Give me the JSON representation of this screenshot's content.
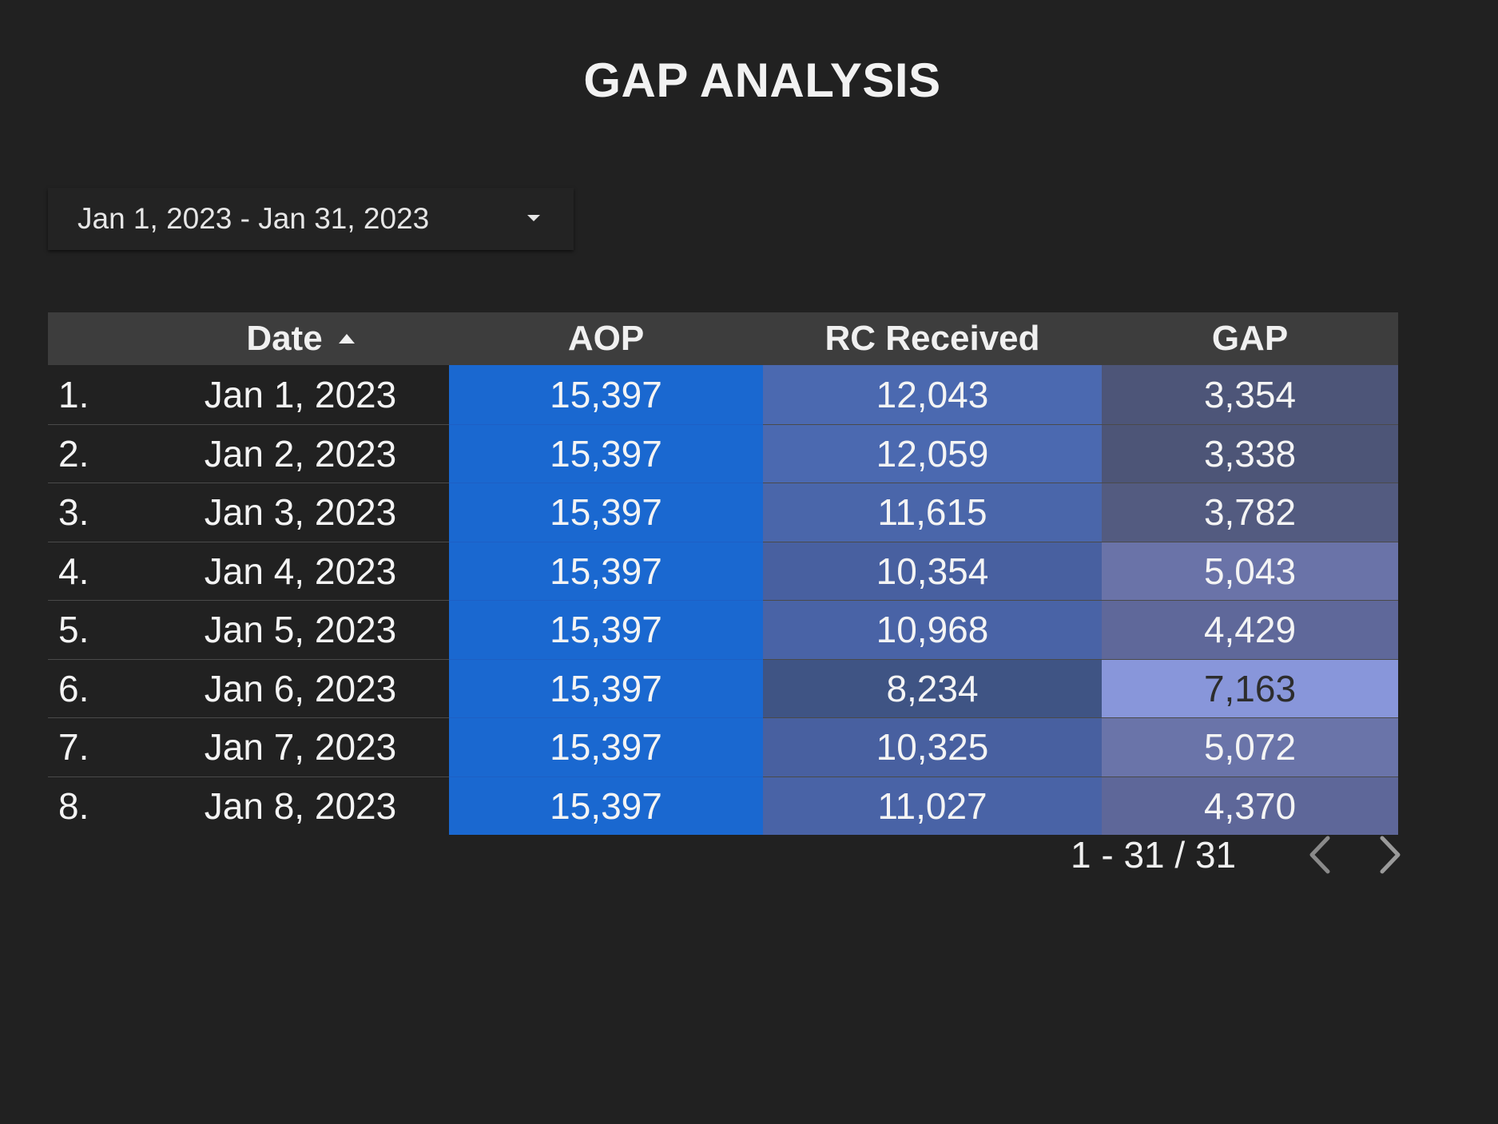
{
  "title": "GAP ANALYSIS",
  "date_range": {
    "label": "Jan 1, 2023 - Jan 31, 2023",
    "icon": "caret-down-icon"
  },
  "table": {
    "headers": {
      "date": "Date",
      "aop": "AOP",
      "rc": "RC Received",
      "gap": "GAP"
    },
    "sort": {
      "column": "Date",
      "direction": "ascending",
      "icon": "sort-ascending-icon"
    },
    "rows": [
      {
        "index": "1.",
        "date": "Jan 1, 2023",
        "aop": "15,397",
        "rc": "12,043",
        "gap": "3,354"
      },
      {
        "index": "2.",
        "date": "Jan 2, 2023",
        "aop": "15,397",
        "rc": "12,059",
        "gap": "3,338"
      },
      {
        "index": "3.",
        "date": "Jan 3, 2023",
        "aop": "15,397",
        "rc": "11,615",
        "gap": "3,782"
      },
      {
        "index": "4.",
        "date": "Jan 4, 2023",
        "aop": "15,397",
        "rc": "10,354",
        "gap": "5,043"
      },
      {
        "index": "5.",
        "date": "Jan 5, 2023",
        "aop": "15,397",
        "rc": "10,968",
        "gap": "4,429"
      },
      {
        "index": "6.",
        "date": "Jan 6, 2023",
        "aop": "15,397",
        "rc": "8,234",
        "gap": "7,163"
      },
      {
        "index": "7.",
        "date": "Jan 7, 2023",
        "aop": "15,397",
        "rc": "10,325",
        "gap": "5,072"
      },
      {
        "index": "8.",
        "date": "Jan 8, 2023",
        "aop": "15,397",
        "rc": "11,027",
        "gap": "4,370"
      }
    ],
    "cell_colors": {
      "aop": [
        "#1a68d0",
        "#1a68d0",
        "#1a68d0",
        "#1a68d0",
        "#1a68d0",
        "#1a68d0",
        "#1a68d0",
        "#1a68d0"
      ],
      "rc": [
        "#4b69b0",
        "#4b69b0",
        "#4a66aa",
        "#4860a0",
        "#4963a6",
        "#3f5484",
        "#4860a0",
        "#4963a6"
      ],
      "gap": [
        "#4d5578",
        "#4d5577",
        "#535b80",
        "#6a73a8",
        "#5f689a",
        "#8896da",
        "#6a74a9",
        "#5e6799"
      ],
      "gap_text": [
        "#f4f4f4",
        "#f4f4f4",
        "#f4f4f4",
        "#f4f4f4",
        "#f4f4f4",
        "#2d2d2d",
        "#f4f4f4",
        "#f4f4f4"
      ]
    }
  },
  "pagination": {
    "range": "1 - 31 / 31",
    "prev_icon": "chevron-left-icon",
    "next_icon": "chevron-right-icon",
    "prev_color": "#8a8a8a",
    "next_color": "#9a9a9a"
  }
}
